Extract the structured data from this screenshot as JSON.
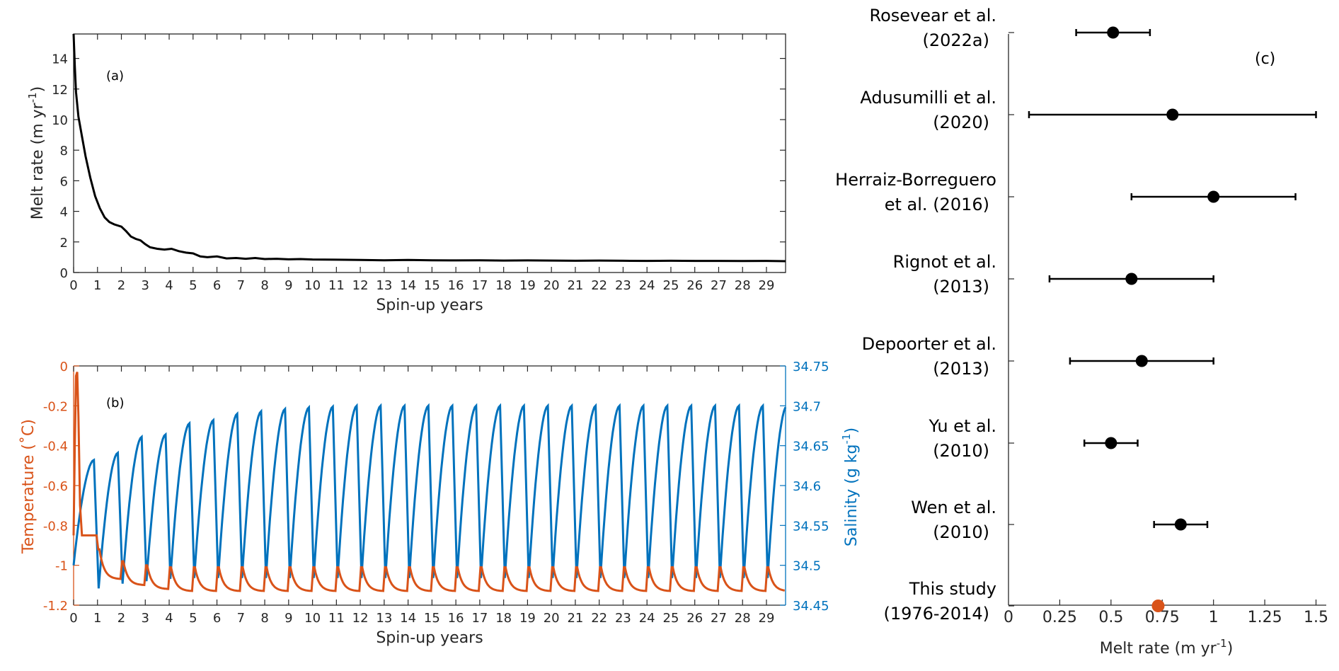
{
  "colors": {
    "axis": "#262626",
    "temperature": "#D95319",
    "salinity": "#0072BD",
    "this_study": "#D95319",
    "marker": "#000000"
  },
  "chart_data": [
    {
      "panel": "a",
      "type": "line",
      "label": "(a)",
      "xlabel": "Spin-up years",
      "ylabel_main": "Melt rate (m yr",
      "ylabel_sup": "-1",
      "ylabel_end": ")",
      "xlim": [
        0,
        29.8
      ],
      "ylim": [
        0,
        15.6
      ],
      "xticks": [
        0,
        1,
        2,
        3,
        4,
        5,
        6,
        7,
        8,
        9,
        10,
        11,
        12,
        13,
        14,
        15,
        16,
        17,
        18,
        19,
        20,
        21,
        22,
        23,
        24,
        25,
        26,
        27,
        28,
        29
      ],
      "yticks": [
        0,
        2,
        4,
        6,
        8,
        10,
        12,
        14
      ],
      "series": [
        {
          "x": [
            0,
            0.05,
            0.1,
            0.2,
            0.35,
            0.5,
            0.7,
            0.9,
            1.1,
            1.3,
            1.5,
            1.7,
            2.0,
            2.2,
            2.4,
            2.6,
            2.8,
            3.0,
            3.2,
            3.5,
            3.8,
            4.1,
            4.4,
            4.7,
            5.0,
            5.3,
            5.6,
            6.0,
            6.4,
            6.8,
            7.2,
            7.6,
            8.0,
            8.5,
            9.0,
            9.5,
            10,
            11,
            12,
            13,
            14,
            15,
            16,
            17,
            18,
            19,
            20,
            21,
            22,
            23,
            24,
            25,
            26,
            27,
            28,
            29,
            29.8
          ],
          "y": [
            15.6,
            13.5,
            11.8,
            10.2,
            8.9,
            7.6,
            6.2,
            5.0,
            4.2,
            3.6,
            3.3,
            3.15,
            3.0,
            2.7,
            2.35,
            2.2,
            2.1,
            1.85,
            1.65,
            1.55,
            1.5,
            1.55,
            1.4,
            1.3,
            1.25,
            1.05,
            1.0,
            1.05,
            0.92,
            0.95,
            0.9,
            0.95,
            0.88,
            0.9,
            0.86,
            0.88,
            0.85,
            0.84,
            0.82,
            0.8,
            0.82,
            0.8,
            0.79,
            0.8,
            0.78,
            0.79,
            0.78,
            0.77,
            0.78,
            0.77,
            0.76,
            0.77,
            0.76,
            0.76,
            0.75,
            0.76,
            0.74
          ]
        }
      ]
    },
    {
      "panel": "b",
      "type": "line",
      "label": "(b)",
      "xlabel": "Spin-up years",
      "ylabel_left": "Temperature (˚C)",
      "ylabel_right_main": "Salinity (g kg",
      "ylabel_right_sup": "-1",
      "ylabel_right_end": ")",
      "xlim": [
        0,
        29.8
      ],
      "ylim_left": [
        -1.2,
        0
      ],
      "ylim_right": [
        34.45,
        34.75
      ],
      "xticks": [
        0,
        1,
        2,
        3,
        4,
        5,
        6,
        7,
        8,
        9,
        10,
        11,
        12,
        13,
        14,
        15,
        16,
        17,
        18,
        19,
        20,
        21,
        22,
        23,
        24,
        25,
        26,
        27,
        28,
        29
      ],
      "yticks_left": [
        "0",
        "-0.2",
        "-0.4",
        "-0.6",
        "-0.8",
        "-1",
        "-1.2"
      ],
      "yticks_right": [
        "34.75",
        "34.7",
        "34.65",
        "34.6",
        "34.55",
        "34.5",
        "34.45"
      ],
      "temperature_peaks": [
        -0.03,
        -0.92,
        -0.98,
        -1.0,
        -1.01,
        -1.01,
        -1.01,
        -1.01,
        -1.01,
        -1.01,
        -1.01,
        -1.01,
        -1.01,
        -1.01,
        -1.01,
        -1.01,
        -1.01,
        -1.01,
        -1.01,
        -1.01,
        -1.01,
        -1.01,
        -1.01,
        -1.01,
        -1.01,
        -1.01,
        -1.01,
        -1.01,
        -1.01,
        -1.01
      ],
      "temperature_troughs": [
        -0.85,
        -1.07,
        -1.1,
        -1.12,
        -1.13,
        -1.13,
        -1.13,
        -1.13,
        -1.13,
        -1.13,
        -1.13,
        -1.13,
        -1.13,
        -1.13,
        -1.13,
        -1.13,
        -1.13,
        -1.13,
        -1.13,
        -1.13,
        -1.13,
        -1.13,
        -1.13,
        -1.13,
        -1.13,
        -1.13,
        -1.13,
        -1.13,
        -1.13,
        -1.13
      ],
      "salinity_peaks": [
        34.632,
        34.641,
        34.661,
        34.664,
        34.678,
        34.682,
        34.69,
        34.693,
        34.696,
        34.698,
        34.699,
        34.7,
        34.7,
        34.7,
        34.7,
        34.7,
        34.7,
        34.7,
        34.7,
        34.7,
        34.7,
        34.7,
        34.7,
        34.7,
        34.7,
        34.7,
        34.7,
        34.7,
        34.7,
        34.7
      ],
      "salinity_troughs": [
        34.498,
        34.471,
        34.477,
        34.48,
        34.483,
        34.484,
        34.484,
        34.484,
        34.484,
        34.484,
        34.484,
        34.484,
        34.484,
        34.484,
        34.484,
        34.484,
        34.484,
        34.484,
        34.484,
        34.484,
        34.484,
        34.484,
        34.484,
        34.484,
        34.484,
        34.484,
        34.484,
        34.484,
        34.484,
        34.484
      ]
    },
    {
      "panel": "c",
      "type": "scatter",
      "label": "(c)",
      "xlabel_main": "Melt rate (m yr",
      "xlabel_sup": "-1",
      "xlabel_end": ")",
      "xlim": [
        0,
        1.55
      ],
      "xticks": [
        "0",
        "0.25",
        "0.5",
        "0.75",
        "1",
        "1.25",
        "1.5"
      ],
      "studies": [
        {
          "line1": "Rosevear et al.",
          "line2": "(2022a)",
          "value": 0.51,
          "low": 0.33,
          "high": 0.69
        },
        {
          "line1": "Adusumilli et al.",
          "line2": "(2020)",
          "value": 0.8,
          "low": 0.1,
          "high": 1.5
        },
        {
          "line1": "Herraiz-Borreguero",
          "line2": "et al. (2016)",
          "value": 1.0,
          "low": 0.6,
          "high": 1.4
        },
        {
          "line1": "Rignot et al.",
          "line2": "(2013)",
          "value": 0.6,
          "low": 0.2,
          "high": 1.0
        },
        {
          "line1": "Depoorter et al.",
          "line2": "(2013)",
          "value": 0.65,
          "low": 0.3,
          "high": 1.0
        },
        {
          "line1": "Yu et al.",
          "line2": "(2010)",
          "value": 0.5,
          "low": 0.37,
          "high": 0.63
        },
        {
          "line1": "Wen et al.",
          "line2": "(2010)",
          "value": 0.84,
          "low": 0.71,
          "high": 0.97
        },
        {
          "line1": "This study",
          "line2": "(1976-2014)",
          "value": 0.73,
          "this_study": true
        }
      ]
    }
  ]
}
